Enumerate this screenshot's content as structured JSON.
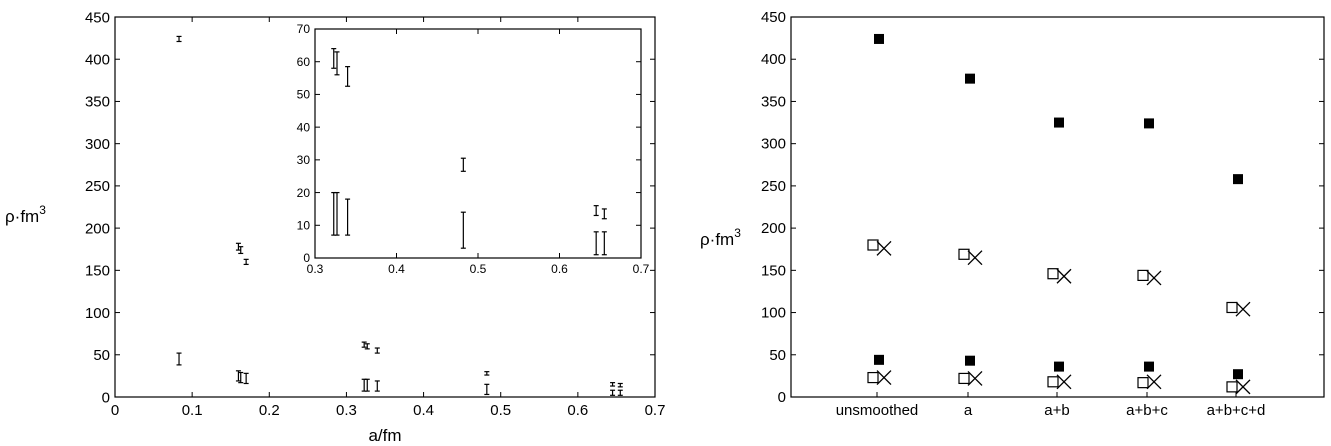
{
  "chart_data": [
    {
      "type": "scatter",
      "xlabel": "a/fm",
      "ylabel": "ρ·fm",
      "ylabel_sup": "3",
      "xlim": [
        0,
        0.7
      ],
      "ylim": [
        0,
        450
      ],
      "xticks": [
        0,
        0.1,
        0.2,
        0.3,
        0.4,
        0.5,
        0.6,
        0.7
      ],
      "yticks": [
        0,
        50,
        100,
        150,
        200,
        250,
        300,
        350,
        400,
        450
      ],
      "xtick_labels": [
        "0",
        "0.1",
        "0.2",
        "0.3",
        "0.4",
        "0.5",
        "0.6",
        "0.7"
      ],
      "ytick_labels": [
        "0",
        "50",
        "100",
        "150",
        "200",
        "250",
        "300",
        "350",
        "400",
        "450"
      ],
      "errorbars": [
        {
          "x": 0.083,
          "y": 424,
          "err": 3
        },
        {
          "x": 0.083,
          "y": 45,
          "err": 7
        },
        {
          "x": 0.16,
          "y": 178,
          "err": 4
        },
        {
          "x": 0.163,
          "y": 174,
          "err": 4
        },
        {
          "x": 0.17,
          "y": 160,
          "err": 3
        },
        {
          "x": 0.16,
          "y": 25,
          "err": 6
        },
        {
          "x": 0.163,
          "y": 23,
          "err": 6
        },
        {
          "x": 0.17,
          "y": 22,
          "err": 6
        },
        {
          "x": 0.323,
          "y": 62,
          "err": 3
        },
        {
          "x": 0.327,
          "y": 60,
          "err": 3
        },
        {
          "x": 0.34,
          "y": 55,
          "err": 3
        },
        {
          "x": 0.323,
          "y": 14,
          "err": 7
        },
        {
          "x": 0.327,
          "y": 14,
          "err": 7
        },
        {
          "x": 0.34,
          "y": 13,
          "err": 6
        },
        {
          "x": 0.482,
          "y": 28,
          "err": 2
        },
        {
          "x": 0.482,
          "y": 9,
          "err": 6
        },
        {
          "x": 0.645,
          "y": 15,
          "err": 2
        },
        {
          "x": 0.655,
          "y": 14,
          "err": 2
        },
        {
          "x": 0.645,
          "y": 5,
          "err": 3
        },
        {
          "x": 0.655,
          "y": 5,
          "err": 3
        }
      ],
      "inset": {
        "xlim": [
          0.3,
          0.7
        ],
        "ylim": [
          0,
          70
        ],
        "xticks": [
          0.3,
          0.4,
          0.5,
          0.6,
          0.7
        ],
        "yticks": [
          0,
          10,
          20,
          30,
          40,
          50,
          60,
          70
        ],
        "xtick_labels": [
          "0.3",
          "0.4",
          "0.5",
          "0.6",
          "0.7"
        ],
        "ytick_labels": [
          "0",
          "10",
          "20",
          "30",
          "40",
          "50",
          "60",
          "70"
        ],
        "errorbars": [
          {
            "x": 0.323,
            "y": 61,
            "err": 3
          },
          {
            "x": 0.327,
            "y": 59.5,
            "err": 3.5
          },
          {
            "x": 0.34,
            "y": 55.5,
            "err": 3
          },
          {
            "x": 0.323,
            "y": 13.5,
            "err": 6.5
          },
          {
            "x": 0.327,
            "y": 13.5,
            "err": 6.5
          },
          {
            "x": 0.34,
            "y": 12.5,
            "err": 5.5
          },
          {
            "x": 0.482,
            "y": 28.5,
            "err": 2
          },
          {
            "x": 0.482,
            "y": 8.5,
            "err": 5.5
          },
          {
            "x": 0.645,
            "y": 14.5,
            "err": 1.5
          },
          {
            "x": 0.655,
            "y": 13.5,
            "err": 1.5
          },
          {
            "x": 0.645,
            "y": 4.5,
            "err": 3.5
          },
          {
            "x": 0.655,
            "y": 4.5,
            "err": 3.5
          }
        ]
      }
    },
    {
      "type": "scatter",
      "ylabel": "ρ·fm",
      "ylabel_sup": "3",
      "ylim": [
        0,
        450
      ],
      "yticks": [
        0,
        50,
        100,
        150,
        200,
        250,
        300,
        350,
        400,
        450
      ],
      "ytick_labels": [
        "0",
        "50",
        "100",
        "150",
        "200",
        "250",
        "300",
        "350",
        "400",
        "450"
      ],
      "categories": [
        "unsmoothed",
        "a",
        "a+b",
        "a+b+c",
        "a+b+c+d"
      ],
      "series": [
        {
          "marker": "filled-square",
          "values": [
            424,
            377,
            325,
            324,
            258
          ]
        },
        {
          "marker": "filled-square",
          "values": [
            44,
            43,
            36,
            36,
            27
          ]
        },
        {
          "marker": "open-square",
          "values": [
            180,
            169,
            146,
            144,
            106
          ]
        },
        {
          "marker": "cross",
          "values": [
            176,
            165,
            143,
            141,
            104
          ]
        },
        {
          "marker": "open-square",
          "values": [
            23,
            22,
            18,
            17,
            12
          ]
        },
        {
          "marker": "cross",
          "values": [
            23,
            22,
            18,
            18,
            12
          ]
        }
      ]
    }
  ]
}
